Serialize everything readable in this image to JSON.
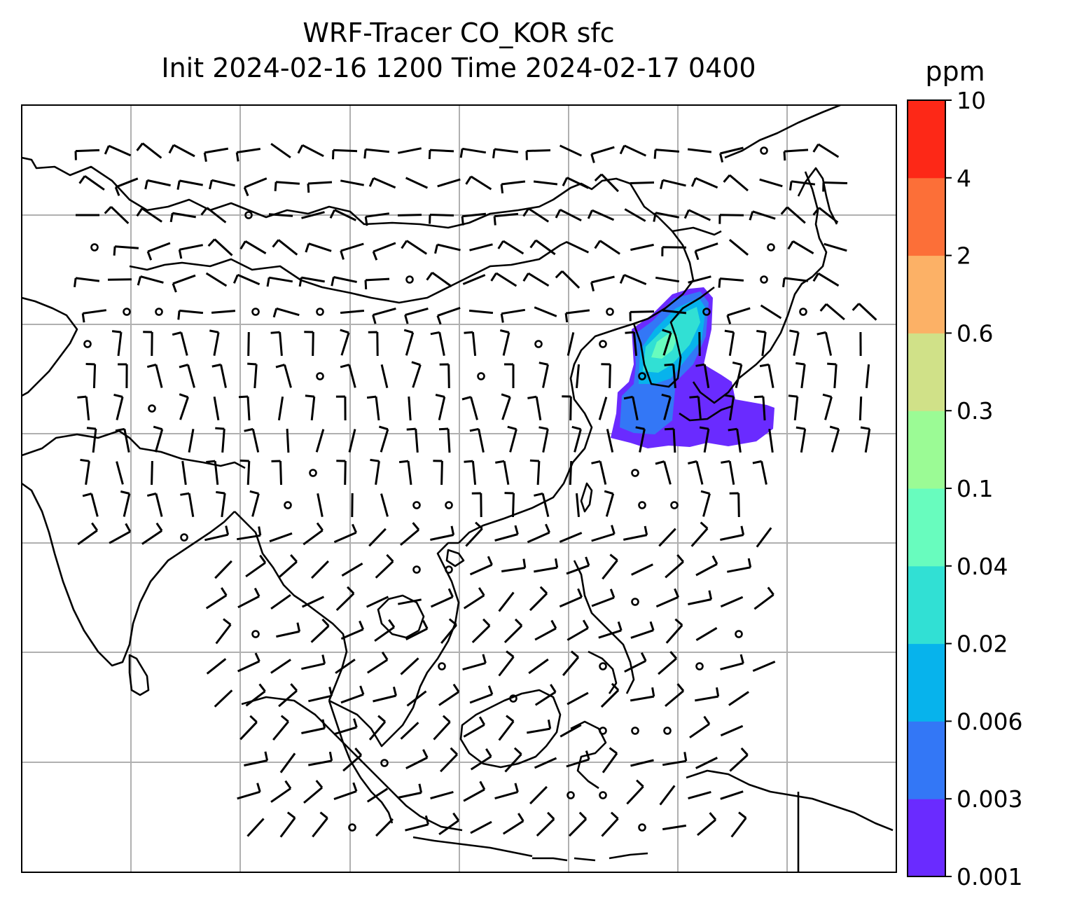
{
  "title": {
    "line1": "WRF-Tracer CO_KOR sfc",
    "line2": "Init 2024-02-16 1200 Time 2024-02-17 0400"
  },
  "colorbar": {
    "unit": "ppm",
    "ticks": [
      "0.001",
      "0.003",
      "0.006",
      "0.02",
      "0.04",
      "0.1",
      "0.3",
      "0.6",
      "2",
      "4",
      "10"
    ],
    "colors": [
      "#6a2bff",
      "#3377f6",
      "#07b3ec",
      "#31e0d4",
      "#68fcbe",
      "#9bfb95",
      "#d0e188",
      "#fcb166",
      "#fc6f38",
      "#fd2817"
    ]
  },
  "map": {
    "gridlines": true,
    "coastline_color": "#000000",
    "grid_color": "#b0b0b0",
    "plume_levels": [
      {
        "level": "0.001",
        "color": "#6a2bff"
      },
      {
        "level": "0.003",
        "color": "#3377f6"
      },
      {
        "level": "0.006",
        "color": "#07b3ec"
      },
      {
        "level": "0.02",
        "color": "#31e0d4"
      },
      {
        "level": "0.04",
        "color": "#68fcbe"
      }
    ]
  }
}
